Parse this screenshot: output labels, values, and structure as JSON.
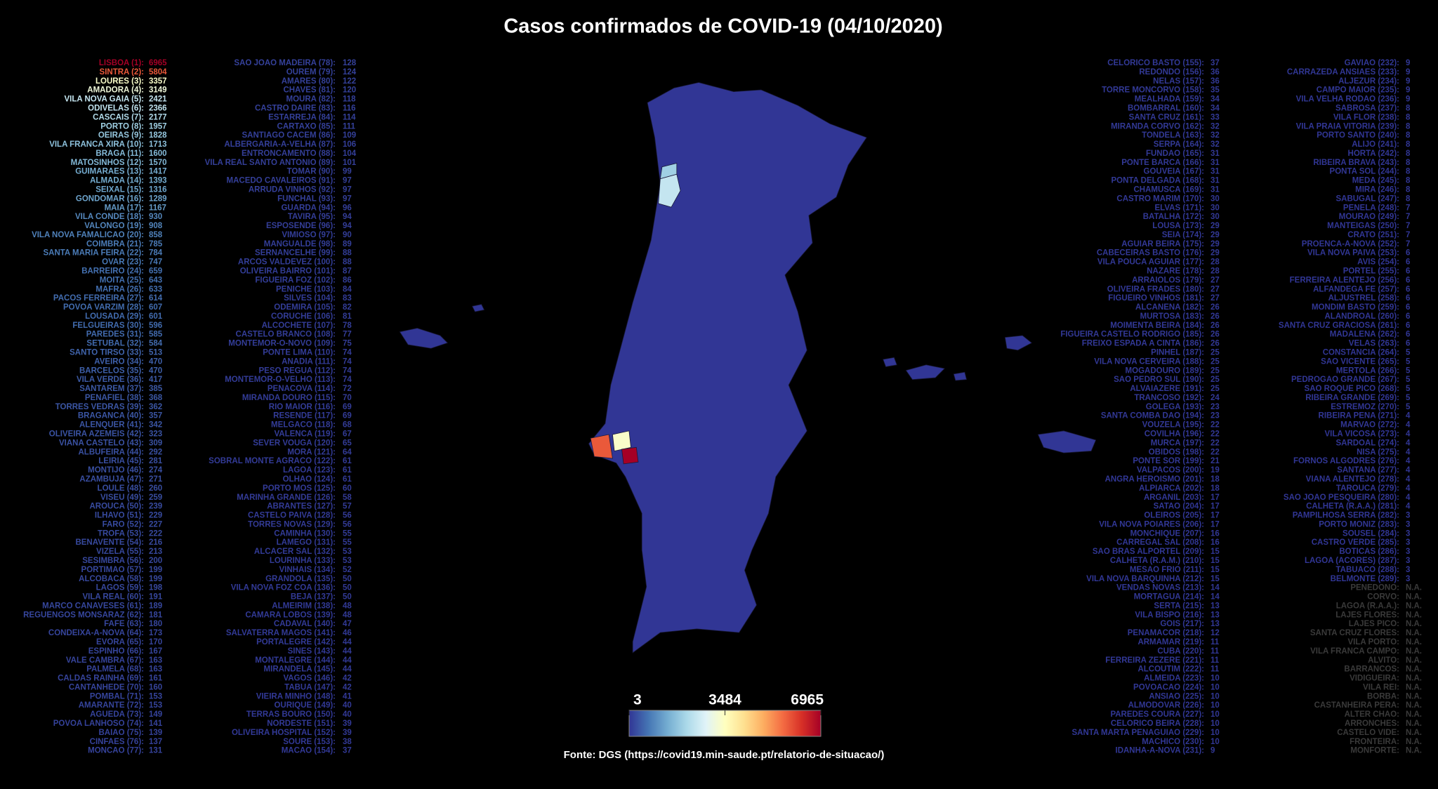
{
  "title": "Casos confirmados de COVID-19 (04/10/2020)",
  "source": "Fonte: DGS (https://covid19.min-saude.pt/relatorio-de-situacao/)",
  "colorbar": {
    "lim": [
      3,
      6965
    ],
    "ticks": [
      3,
      3484,
      6965
    ],
    "colorscale": [
      "#313695",
      "#4575b4",
      "#74add1",
      "#abd9e9",
      "#e0f3f8",
      "#ffffbf",
      "#fee090",
      "#fdae61",
      "#f46d43",
      "#d73027",
      "#a50026"
    ]
  },
  "na_color": "#3a3a3a",
  "columns": [
    [
      [
        "LISBOA (1):",
        6965
      ],
      [
        "SINTRA (2):",
        5804
      ],
      [
        "LOURES (3):",
        3357
      ],
      [
        "AMADORA (4):",
        3149
      ],
      [
        "VILA NOVA GAIA (5):",
        2421
      ],
      [
        "ODIVELAS (6):",
        2366
      ],
      [
        "CASCAIS (7):",
        2177
      ],
      [
        "PORTO (8):",
        1957
      ],
      [
        "OEIRAS (9):",
        1828
      ],
      [
        "VILA FRANCA XIRA (10):",
        1713
      ],
      [
        "BRAGA (11):",
        1600
      ],
      [
        "MATOSINHOS (12):",
        1570
      ],
      [
        "GUIMARAES (13):",
        1417
      ],
      [
        "ALMADA (14):",
        1393
      ],
      [
        "SEIXAL (15):",
        1316
      ],
      [
        "GONDOMAR (16):",
        1289
      ],
      [
        "MAIA (17):",
        1167
      ],
      [
        "VILA CONDE (18):",
        930
      ],
      [
        "VALONGO (19):",
        908
      ],
      [
        "VILA NOVA FAMALICAO (20):",
        858
      ],
      [
        "COIMBRA (21):",
        785
      ],
      [
        "SANTA MARIA FEIRA (22):",
        784
      ],
      [
        "OVAR (23):",
        747
      ],
      [
        "BARREIRO (24):",
        659
      ],
      [
        "MOITA (25):",
        643
      ],
      [
        "MAFRA (26):",
        633
      ],
      [
        "PACOS FERREIRA (27):",
        614
      ],
      [
        "POVOA VARZIM (28):",
        607
      ],
      [
        "LOUSADA (29):",
        601
      ],
      [
        "FELGUEIRAS (30):",
        596
      ],
      [
        "PAREDES (31):",
        585
      ],
      [
        "SETUBAL (32):",
        584
      ],
      [
        "SANTO TIRSO (33):",
        513
      ],
      [
        "AVEIRO (34):",
        470
      ],
      [
        "BARCELOS (35):",
        470
      ],
      [
        "VILA VERDE (36):",
        417
      ],
      [
        "SANTAREM (37):",
        385
      ],
      [
        "PENAFIEL (38):",
        368
      ],
      [
        "TORRES VEDRAS (39):",
        362
      ],
      [
        "BRAGANCA (40):",
        357
      ],
      [
        "ALENQUER (41):",
        342
      ],
      [
        "OLIVEIRA AZEMEIS (42):",
        323
      ],
      [
        "VIANA CASTELO (43):",
        309
      ],
      [
        "ALBUFEIRA (44):",
        292
      ],
      [
        "LEIRIA (45):",
        281
      ],
      [
        "MONTIJO (46):",
        274
      ],
      [
        "AZAMBUJA (47):",
        271
      ],
      [
        "LOULE (48):",
        260
      ],
      [
        "VISEU (49):",
        259
      ],
      [
        "AROUCA (50):",
        239
      ],
      [
        "ILHAVO (51):",
        229
      ],
      [
        "FARO (52):",
        227
      ],
      [
        "TROFA (53):",
        222
      ],
      [
        "BENAVENTE (54):",
        216
      ],
      [
        "VIZELA (55):",
        213
      ],
      [
        "SESIMBRA (56):",
        200
      ],
      [
        "PORTIMAO (57):",
        199
      ],
      [
        "ALCOBACA (58):",
        199
      ],
      [
        "LAGOS (59):",
        198
      ],
      [
        "VILA REAL (60):",
        191
      ],
      [
        "MARCO CANAVESES (61):",
        189
      ],
      [
        "REGUENGOS MONSARAZ (62):",
        181
      ],
      [
        "FAFE (63):",
        180
      ],
      [
        "CONDEIXA-A-NOVA (64):",
        173
      ],
      [
        "EVORA (65):",
        170
      ],
      [
        "ESPINHO (66):",
        167
      ],
      [
        "VALE CAMBRA (67):",
        163
      ],
      [
        "PALMELA (68):",
        163
      ],
      [
        "CALDAS RAINHA (69):",
        161
      ],
      [
        "CANTANHEDE (70):",
        160
      ],
      [
        "POMBAL (71):",
        153
      ],
      [
        "AMARANTE (72):",
        153
      ],
      [
        "AGUEDA (73):",
        149
      ],
      [
        "POVOA LANHOSO (74):",
        141
      ],
      [
        "BAIAO (75):",
        139
      ],
      [
        "CINFAES (76):",
        137
      ],
      [
        "MONCAO (77):",
        131
      ]
    ],
    [
      [
        "SAO JOAO MADEIRA (78):",
        128
      ],
      [
        "OUREM (79):",
        124
      ],
      [
        "AMARES (80):",
        122
      ],
      [
        "CHAVES (81):",
        120
      ],
      [
        "MOURA (82):",
        118
      ],
      [
        "CASTRO DAIRE (83):",
        116
      ],
      [
        "ESTARREJA (84):",
        114
      ],
      [
        "CARTAXO (85):",
        111
      ],
      [
        "SANTIAGO CACEM (86):",
        109
      ],
      [
        "ALBERGARIA-A-VELHA (87):",
        106
      ],
      [
        "ENTRONCAMENTO (88):",
        104
      ],
      [
        "VILA REAL SANTO ANTONIO (89):",
        101
      ],
      [
        "TOMAR (90):",
        99
      ],
      [
        "MACEDO CAVALEIROS (91):",
        97
      ],
      [
        "ARRUDA VINHOS (92):",
        97
      ],
      [
        "FUNCHAL (93):",
        97
      ],
      [
        "GUARDA (94):",
        96
      ],
      [
        "TAVIRA (95):",
        94
      ],
      [
        "ESPOSENDE (96):",
        94
      ],
      [
        "VIMIOSO (97):",
        90
      ],
      [
        "MANGUALDE (98):",
        89
      ],
      [
        "SERNANCELHE (99):",
        88
      ],
      [
        "ARCOS VALDEVEZ (100):",
        88
      ],
      [
        "OLIVEIRA BAIRRO (101):",
        87
      ],
      [
        "FIGUEIRA FOZ (102):",
        86
      ],
      [
        "PENICHE (103):",
        84
      ],
      [
        "SILVES (104):",
        83
      ],
      [
        "ODEMIRA (105):",
        82
      ],
      [
        "CORUCHE (106):",
        81
      ],
      [
        "ALCOCHETE (107):",
        78
      ],
      [
        "CASTELO BRANCO (108):",
        77
      ],
      [
        "MONTEMOR-O-NOVO (109):",
        75
      ],
      [
        "PONTE LIMA (110):",
        74
      ],
      [
        "ANADIA (111):",
        74
      ],
      [
        "PESO REGUA (112):",
        74
      ],
      [
        "MONTEMOR-O-VELHO (113):",
        74
      ],
      [
        "PENACOVA (114):",
        72
      ],
      [
        "MIRANDA DOURO (115):",
        70
      ],
      [
        "RIO MAIOR (116):",
        69
      ],
      [
        "RESENDE (117):",
        69
      ],
      [
        "MELGACO (118):",
        68
      ],
      [
        "VALENCA (119):",
        67
      ],
      [
        "SEVER VOUGA (120):",
        65
      ],
      [
        "MORA (121):",
        64
      ],
      [
        "SOBRAL MONTE AGRACO (122):",
        61
      ],
      [
        "LAGOA (123):",
        61
      ],
      [
        "OLHAO (124):",
        61
      ],
      [
        "PORTO MOS (125):",
        60
      ],
      [
        "MARINHA GRANDE (126):",
        58
      ],
      [
        "ABRANTES (127):",
        57
      ],
      [
        "CASTELO PAIVA (128):",
        56
      ],
      [
        "TORRES NOVAS (129):",
        56
      ],
      [
        "CAMINHA (130):",
        55
      ],
      [
        "LAMEGO (131):",
        55
      ],
      [
        "ALCACER SAL (132):",
        53
      ],
      [
        "LOURINHA (133):",
        53
      ],
      [
        "VINHAIS (134):",
        52
      ],
      [
        "GRANDOLA (135):",
        50
      ],
      [
        "VILA NOVA FOZ COA (136):",
        50
      ],
      [
        "BEJA (137):",
        50
      ],
      [
        "ALMEIRIM (138):",
        48
      ],
      [
        "CAMARA LOBOS (139):",
        48
      ],
      [
        "CADAVAL (140):",
        47
      ],
      [
        "SALVATERRA MAGOS (141):",
        46
      ],
      [
        "PORTALEGRE (142):",
        44
      ],
      [
        "SINES (143):",
        44
      ],
      [
        "MONTALEGRE (144):",
        44
      ],
      [
        "MIRANDELA (145):",
        44
      ],
      [
        "VAGOS (146):",
        42
      ],
      [
        "TABUA (147):",
        42
      ],
      [
        "VIEIRA MINHO (148):",
        41
      ],
      [
        "OURIQUE (149):",
        40
      ],
      [
        "TERRAS BOURO (150):",
        40
      ],
      [
        "NORDESTE (151):",
        39
      ],
      [
        "OLIVEIRA HOSPITAL (152):",
        39
      ],
      [
        "SOURE (153):",
        38
      ],
      [
        "MACAO (154):",
        37
      ]
    ],
    [
      [
        "CELORICO BASTO (155):",
        37
      ],
      [
        "REDONDO (156):",
        36
      ],
      [
        "NELAS (157):",
        36
      ],
      [
        "TORRE MONCORVO (158):",
        35
      ],
      [
        "MEALHADA (159):",
        34
      ],
      [
        "BOMBARRAL (160):",
        34
      ],
      [
        "SANTA CRUZ (161):",
        33
      ],
      [
        "MIRANDA CORVO (162):",
        32
      ],
      [
        "TONDELA (163):",
        32
      ],
      [
        "SERPA (164):",
        32
      ],
      [
        "FUNDAO (165):",
        31
      ],
      [
        "PONTE BARCA (166):",
        31
      ],
      [
        "GOUVEIA (167):",
        31
      ],
      [
        "PONTA DELGADA (168):",
        31
      ],
      [
        "CHAMUSCA (169):",
        31
      ],
      [
        "CASTRO MARIM (170):",
        30
      ],
      [
        "ELVAS (171):",
        30
      ],
      [
        "BATALHA (172):",
        30
      ],
      [
        "LOUSA (173):",
        29
      ],
      [
        "SEIA (174):",
        29
      ],
      [
        "AGUIAR BEIRA (175):",
        29
      ],
      [
        "CABECEIRAS BASTO (176):",
        29
      ],
      [
        "VILA POUCA AGUIAR (177):",
        28
      ],
      [
        "NAZARE (178):",
        28
      ],
      [
        "ARRAIOLOS (179):",
        27
      ],
      [
        "OLIVEIRA FRADES (180):",
        27
      ],
      [
        "FIGUEIRO VINHOS (181):",
        27
      ],
      [
        "ALCANENA (182):",
        26
      ],
      [
        "MURTOSA (183):",
        26
      ],
      [
        "MOIMENTA BEIRA (184):",
        26
      ],
      [
        "FIGUEIRA CASTELO RODRIGO (185):",
        26
      ],
      [
        "FREIXO ESPADA A CINTA (186):",
        26
      ],
      [
        "PINHEL (187):",
        25
      ],
      [
        "VILA NOVA CERVEIRA (188):",
        25
      ],
      [
        "MOGADOURO (189):",
        25
      ],
      [
        "SAO PEDRO SUL (190):",
        25
      ],
      [
        "ALVAIAZERE (191):",
        25
      ],
      [
        "TRANCOSO (192):",
        24
      ],
      [
        "GOLEGA (193):",
        23
      ],
      [
        "SANTA COMBA DAO (194):",
        23
      ],
      [
        "VOUZELA (195):",
        22
      ],
      [
        "COVILHA (196):",
        22
      ],
      [
        "MURCA (197):",
        22
      ],
      [
        "OBIDOS (198):",
        22
      ],
      [
        "PONTE SOR (199):",
        21
      ],
      [
        "VALPACOS (200):",
        19
      ],
      [
        "ANGRA HEROISMO (201):",
        18
      ],
      [
        "ALPIARCA (202):",
        18
      ],
      [
        "ARGANIL (203):",
        17
      ],
      [
        "SATAO (204):",
        17
      ],
      [
        "OLEIROS (205):",
        17
      ],
      [
        "VILA NOVA POIARES (206):",
        17
      ],
      [
        "MONCHIQUE (207):",
        16
      ],
      [
        "CARREGAL SAL (208):",
        16
      ],
      [
        "SAO BRAS ALPORTEL (209):",
        15
      ],
      [
        "CALHETA (R.A.M.) (210):",
        15
      ],
      [
        "MESAO FRIO (211):",
        15
      ],
      [
        "VILA NOVA BARQUINHA (212):",
        15
      ],
      [
        "VENDAS NOVAS (213):",
        14
      ],
      [
        "MORTAGUA (214):",
        14
      ],
      [
        "SERTA (215):",
        13
      ],
      [
        "VILA BISPO (216):",
        13
      ],
      [
        "GOIS (217):",
        13
      ],
      [
        "PENAMACOR (218):",
        12
      ],
      [
        "ARMAMAR (219):",
        11
      ],
      [
        "CUBA (220):",
        11
      ],
      [
        "FERREIRA ZEZERE (221):",
        11
      ],
      [
        "ALCOUTIM (222):",
        11
      ],
      [
        "ALMEIDA (223):",
        10
      ],
      [
        "POVOACAO (224):",
        10
      ],
      [
        "ANSIAO (225):",
        10
      ],
      [
        "ALMODOVAR (226):",
        10
      ],
      [
        "PAREDES COURA (227):",
        10
      ],
      [
        "CELORICO BEIRA (228):",
        10
      ],
      [
        "SANTA MARTA PENAGUIAO (229):",
        10
      ],
      [
        "MACHICO (230):",
        10
      ],
      [
        "IDANHA-A-NOVA (231):",
        9
      ]
    ],
    [
      [
        "GAVIAO (232):",
        9
      ],
      [
        "CARRAZEDA ANSIAES (233):",
        9
      ],
      [
        "ALJEZUR (234):",
        9
      ],
      [
        "CAMPO MAIOR (235):",
        9
      ],
      [
        "VILA VELHA RODAO (236):",
        9
      ],
      [
        "SABROSA (237):",
        8
      ],
      [
        "VILA FLOR (238):",
        8
      ],
      [
        "VILA PRAIA VITORIA (239):",
        8
      ],
      [
        "PORTO SANTO (240):",
        8
      ],
      [
        "ALIJO (241):",
        8
      ],
      [
        "HORTA (242):",
        8
      ],
      [
        "RIBEIRA BRAVA (243):",
        8
      ],
      [
        "PONTA SOL (244):",
        8
      ],
      [
        "MEDA (245):",
        8
      ],
      [
        "MIRA (246):",
        8
      ],
      [
        "SABUGAL (247):",
        8
      ],
      [
        "PENELA (248):",
        7
      ],
      [
        "MOURAO (249):",
        7
      ],
      [
        "MANTEIGAS (250):",
        7
      ],
      [
        "CRATO (251):",
        7
      ],
      [
        "PROENCA-A-NOVA (252):",
        7
      ],
      [
        "VILA NOVA PAIVA (253):",
        6
      ],
      [
        "AVIS (254):",
        6
      ],
      [
        "PORTEL (255):",
        6
      ],
      [
        "FERREIRA ALENTEJO (256):",
        6
      ],
      [
        "ALFANDEGA FE (257):",
        6
      ],
      [
        "ALJUSTREL (258):",
        6
      ],
      [
        "MONDIM BASTO (259):",
        6
      ],
      [
        "ALANDROAL (260):",
        6
      ],
      [
        "SANTA CRUZ GRACIOSA (261):",
        6
      ],
      [
        "MADALENA (262):",
        6
      ],
      [
        "VELAS (263):",
        6
      ],
      [
        "CONSTANCIA (264):",
        5
      ],
      [
        "SAO VICENTE (265):",
        5
      ],
      [
        "MERTOLA (266):",
        5
      ],
      [
        "PEDROGAO GRANDE (267):",
        5
      ],
      [
        "SAO ROQUE PICO (268):",
        5
      ],
      [
        "RIBEIRA GRANDE (269):",
        5
      ],
      [
        "ESTREMOZ (270):",
        5
      ],
      [
        "RIBEIRA PENA (271):",
        4
      ],
      [
        "MARVAO (272):",
        4
      ],
      [
        "VILA VICOSA (273):",
        4
      ],
      [
        "SARDOAL (274):",
        4
      ],
      [
        "NISA (275):",
        4
      ],
      [
        "FORNOS ALGODRES (276):",
        4
      ],
      [
        "SANTANA (277):",
        4
      ],
      [
        "VIANA ALENTEJO (278):",
        4
      ],
      [
        "TAROUCA (279):",
        4
      ],
      [
        "SAO JOAO PESQUEIRA (280):",
        4
      ],
      [
        "CALHETA (R.A.A.) (281):",
        4
      ],
      [
        "PAMPILHOSA SERRA (282):",
        3
      ],
      [
        "PORTO MONIZ (283):",
        3
      ],
      [
        "SOUSEL (284):",
        3
      ],
      [
        "CASTRO VERDE (285):",
        3
      ],
      [
        "BOTICAS (286):",
        3
      ],
      [
        "LAGOA (ACORES) (287):",
        3
      ],
      [
        "TABUACO (288):",
        3
      ],
      [
        "BELMONTE (289):",
        3
      ],
      [
        "PENEDONO:",
        "N.A."
      ],
      [
        "CORVO:",
        "N.A."
      ],
      [
        "LAGOA (R.A.A.):",
        "N.A."
      ],
      [
        "LAJES FLORES:",
        "N.A."
      ],
      [
        "LAJES PICO:",
        "N.A."
      ],
      [
        "SANTA CRUZ FLORES:",
        "N.A."
      ],
      [
        "VILA PORTO:",
        "N.A."
      ],
      [
        "VILA FRANCA CAMPO:",
        "N.A."
      ],
      [
        "ALVITO:",
        "N.A."
      ],
      [
        "BARRANCOS:",
        "N.A."
      ],
      [
        "VIDIGUEIRA:",
        "N.A."
      ],
      [
        "VILA REI:",
        "N.A."
      ],
      [
        "BORBA:",
        "N.A."
      ],
      [
        "CASTANHEIRA PERA:",
        "N.A."
      ],
      [
        "ALTER CHAO:",
        "N.A."
      ],
      [
        "ARRONCHES:",
        "N.A."
      ],
      [
        "CASTELO VIDE:",
        "N.A."
      ],
      [
        "FRONTEIRA:",
        "N.A."
      ],
      [
        "MONFORTE:",
        "N.A."
      ]
    ]
  ]
}
